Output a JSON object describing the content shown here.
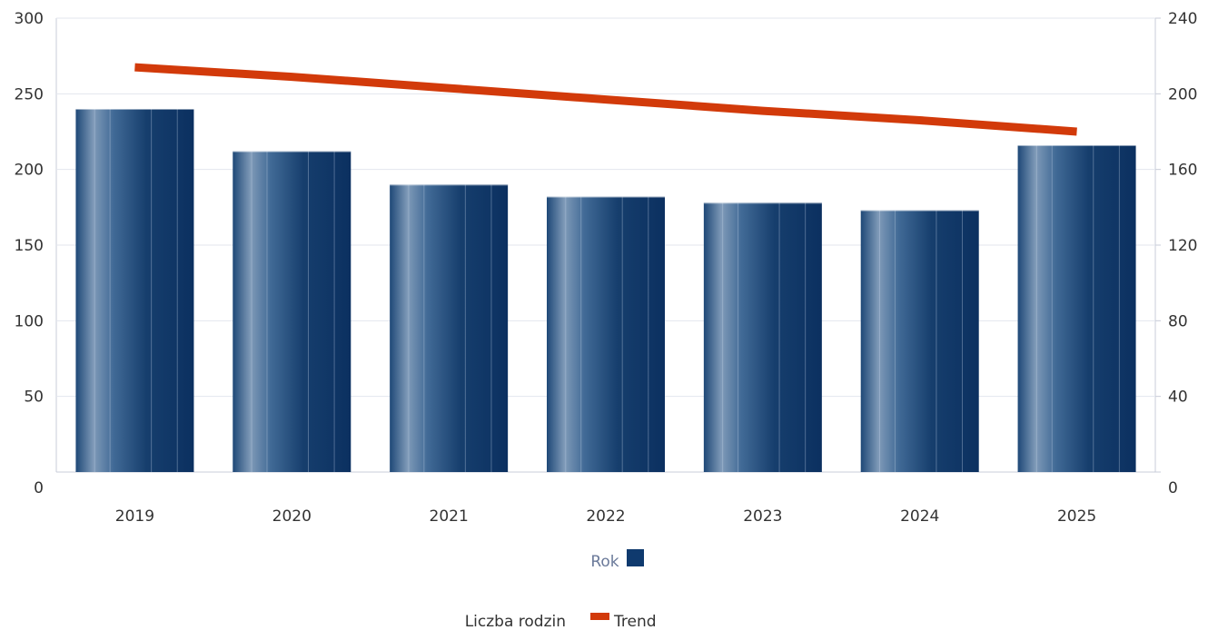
{
  "chart_data": {
    "type": "bar",
    "categories": [
      "2019",
      "2020",
      "2021",
      "2022",
      "2023",
      "2024",
      "2025"
    ],
    "series": [
      {
        "name": "Liczba rodzin",
        "type": "bar",
        "axis": "left",
        "values": [
          240,
          212,
          190,
          182,
          178,
          173,
          216
        ],
        "color": "#0f3a6e"
      },
      {
        "name": "Trend",
        "type": "line",
        "axis": "right",
        "values": [
          214,
          209,
          203,
          197,
          191,
          186,
          180
        ],
        "color": "#d23a0a"
      }
    ],
    "xlabel": "Rok",
    "y_left": {
      "range": [
        0,
        300
      ],
      "ticks": [
        "0",
        "50",
        "100",
        "150",
        "200",
        "250",
        "300"
      ]
    },
    "y_right": {
      "range": [
        0,
        240
      ],
      "ticks": [
        "0",
        "40",
        "80",
        "120",
        "160",
        "200",
        "240"
      ]
    },
    "grid": true,
    "legend": {
      "position": "bottom",
      "entries": [
        "Liczba rodzin",
        "Trend"
      ]
    }
  }
}
